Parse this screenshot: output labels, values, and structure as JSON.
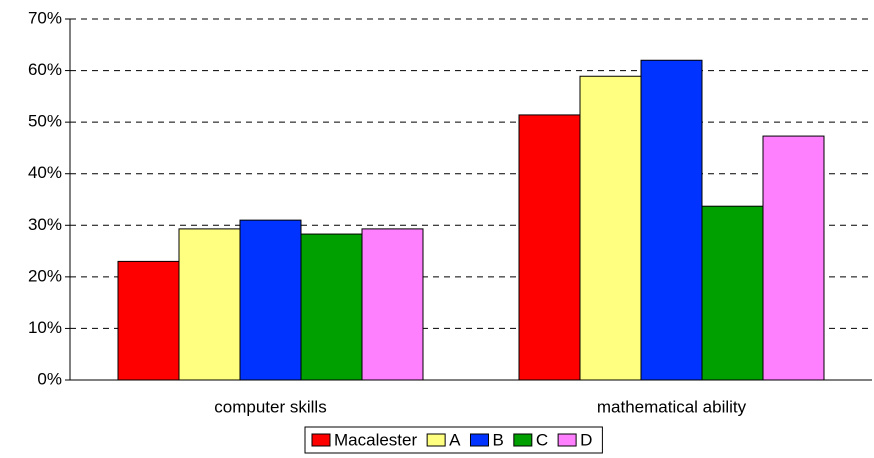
{
  "chart_data": {
    "type": "bar",
    "categories": [
      "computer skills",
      "mathematical ability"
    ],
    "series": [
      {
        "name": "Macalester",
        "color": "#ff0000",
        "values": [
          23,
          51.4
        ]
      },
      {
        "name": "A",
        "color": "#ffff80",
        "values": [
          29.3,
          58.9
        ]
      },
      {
        "name": "B",
        "color": "#0033ff",
        "values": [
          31,
          62
        ]
      },
      {
        "name": "C",
        "color": "#00a000",
        "values": [
          28.3,
          33.7
        ]
      },
      {
        "name": "D",
        "color": "#ff80ff",
        "values": [
          29.3,
          47.3
        ]
      }
    ],
    "ylim": [
      0,
      70
    ],
    "yticks": [
      {
        "value": 0,
        "label": "0%"
      },
      {
        "value": 10,
        "label": "10%"
      },
      {
        "value": 20,
        "label": "20%"
      },
      {
        "value": 30,
        "label": "30%"
      },
      {
        "value": 40,
        "label": "40%"
      },
      {
        "value": 50,
        "label": "50%"
      },
      {
        "value": 60,
        "label": "60%"
      },
      {
        "value": 70,
        "label": "70%"
      }
    ],
    "grid": true,
    "legend": "bottom"
  }
}
